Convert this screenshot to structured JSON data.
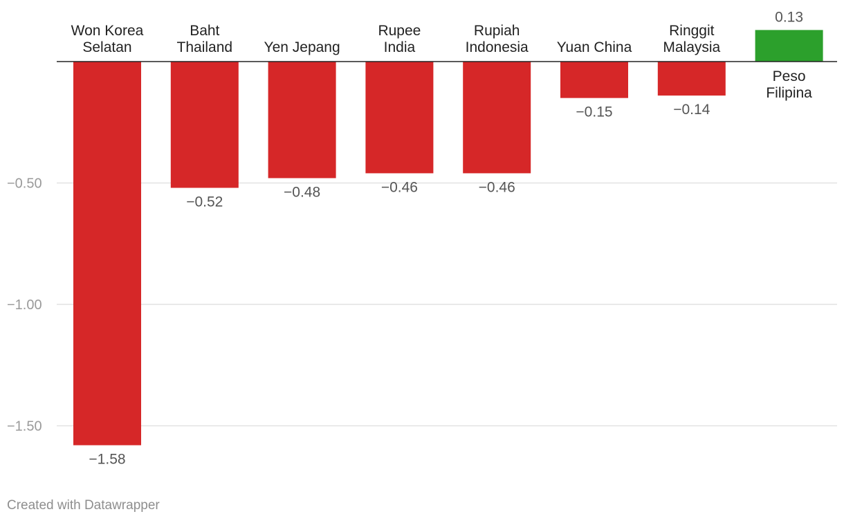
{
  "chart_data": {
    "type": "bar",
    "categories": [
      [
        "Won Korea",
        "Selatan"
      ],
      [
        "Baht",
        "Thailand"
      ],
      [
        "Yen Jepang"
      ],
      [
        "Rupee",
        "India"
      ],
      [
        "Rupiah",
        "Indonesia"
      ],
      [
        "Yuan China"
      ],
      [
        "Ringgit",
        "Malaysia"
      ],
      [
        "Peso",
        "Filipina"
      ]
    ],
    "values": [
      -1.58,
      -0.52,
      -0.48,
      -0.46,
      -0.46,
      -0.15,
      -0.14,
      0.13
    ],
    "value_labels": [
      "−1.58",
      "−0.52",
      "−0.48",
      "−0.46",
      "−0.46",
      "−0.15",
      "−0.14",
      "0.13"
    ],
    "y_ticks": [
      -0.5,
      -1.0,
      -1.5
    ],
    "y_tick_labels": [
      "−0.50",
      "−1.00",
      "−1.50"
    ],
    "ylim": [
      -1.58,
      0.13
    ],
    "grid": true,
    "colors": {
      "negative": "#d62728",
      "positive": "#2ca02c",
      "gridline": "#e2e2e2",
      "baseline": "#222222"
    }
  },
  "footer": {
    "credit": "Created with Datawrapper"
  }
}
